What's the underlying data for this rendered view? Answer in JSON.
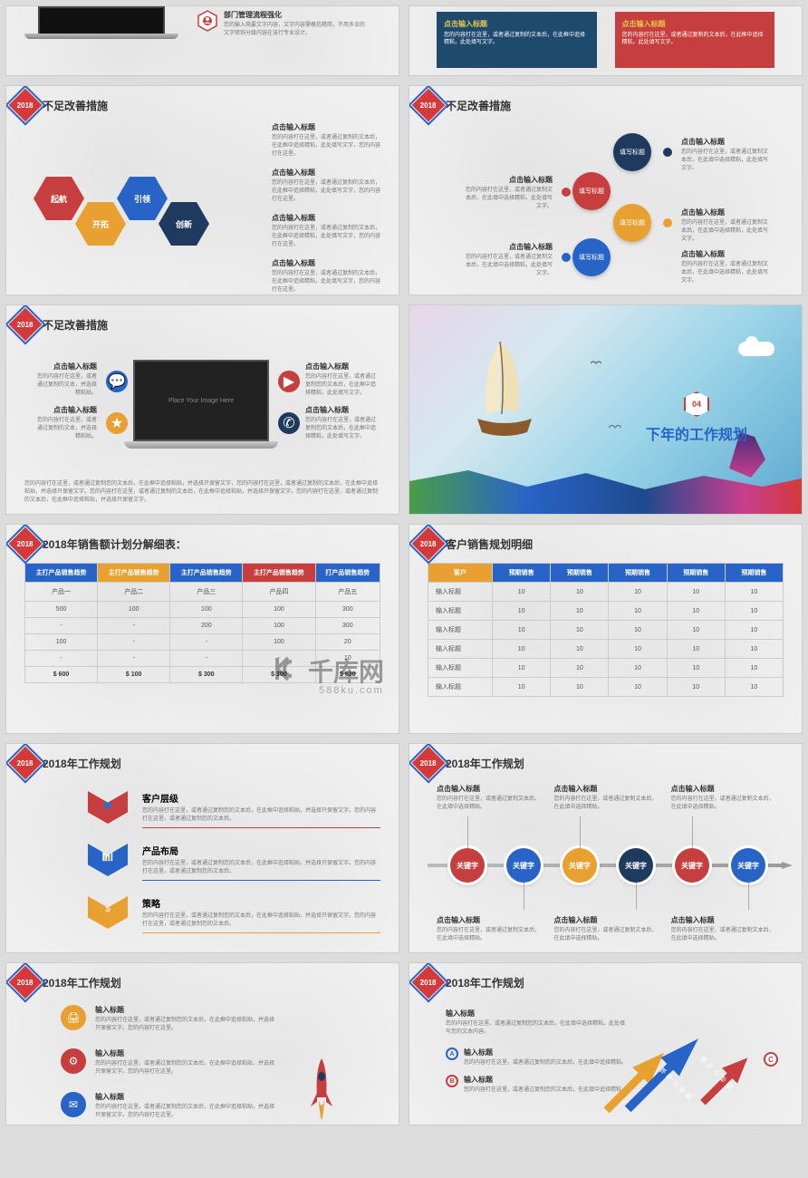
{
  "watermark": {
    "main": "千库网",
    "sub": "588ku.com"
  },
  "common": {
    "year": "2018",
    "enterTitle": "点击输入标题",
    "inputTitle": "输入标题",
    "keyword": "关键字",
    "fillTitle": "填写标题"
  },
  "s1": {
    "title": "部门管理流程强化",
    "desc": "您的输入简要文字内容，文字内容需概括精简，不用多余的文字修饰分级内容在该行专业设计。"
  },
  "s2": {
    "box1": "您的内容打在这里，或者通过复制的文本后，在此框中追择精粘，此处填写文字。",
    "box2": "您的内容打在这里，或者通过复制的文本后，在此框中追择精粘，此处填写文字。"
  },
  "s3": {
    "title": "不足改善措施",
    "hex": [
      "起航",
      "开拓",
      "引领",
      "创新"
    ],
    "txt": "您的内容打在这里，或者通过复制的文本后，在此框中追择精粘，此处填写文字，您的内容打在这里。",
    "colors": [
      "#c73e3e",
      "#e8a030",
      "#2864c7",
      "#1e3a5e"
    ]
  },
  "s4": {
    "title": "不足改善措施",
    "txt": "您的内容打在这里，或者通过复制文本后，在此填中选择精粘，此处填写文字。",
    "colors": [
      "#1e3a5e",
      "#c73e3e",
      "#e8a030",
      "#2864c7"
    ]
  },
  "s5": {
    "title": "不足改善措施",
    "placeholder": "Place Your Image Here",
    "left1": "您的内容打在这里，或者通过复制的文本，并选择精粘贴。",
    "left2": "您的内容打在这里，或者通过复制的文本，并选择精粘贴。",
    "right": "您的内容打在这里，或者通过复制您的文本后，在此框中追择精粘，此处填写文字。",
    "para": "您的内容打在这里，或者通过复制您的文本后，在此框中追择粘贴，并选择只保留文字，您的内容打在这里，或者通过复制的文本后，在此框中追择粘贴，并选择只保留文字。您的内容打在这里，或者通过复制的文本后，在此框中追择粘贴，并选择只保留文字。您的内容打在这里，或者通过复制的文本后，在此框中追择粘贴，并选择只保留文字。",
    "iconColors": [
      "#2864c7",
      "#e8a030",
      "#c73e3e",
      "#1e3a5e"
    ]
  },
  "s6": {
    "num": "04",
    "title": "下年的工作规划"
  },
  "s7": {
    "title": "2018年销售额计划分解细表：",
    "headers": [
      "主打产品销售趋势",
      "主打产品销售趋势",
      "主打产品销售趋势",
      "主打产品销售趋势",
      "打产品销售趋势"
    ],
    "rows": [
      [
        "产品一",
        "产品二",
        "产品三",
        "产品四",
        "产品五"
      ],
      [
        "500",
        "100",
        "100",
        "100",
        "300"
      ],
      [
        "-",
        "-",
        "200",
        "100",
        "300"
      ],
      [
        "100",
        "-",
        "-",
        "100",
        "20"
      ],
      [
        "-",
        "-",
        "-",
        "-",
        "10"
      ]
    ],
    "footer": [
      "$ 600",
      "$ 100",
      "$ 300",
      "$ 300",
      "$ 630"
    ]
  },
  "s8": {
    "title": "客户销售规划明细",
    "headers": [
      "客户",
      "预期销售",
      "预期销售",
      "预期销售",
      "预期销售",
      "预期销售"
    ],
    "rowLabel": "输入标题",
    "val": "10"
  },
  "s9": {
    "title": "2018年工作规划",
    "items": [
      {
        "label": "客户层级",
        "color": "#c73e3e",
        "icon": "👤"
      },
      {
        "label": "产品布局",
        "color": "#2864c7",
        "icon": "📊"
      },
      {
        "label": "策略",
        "color": "#e8a030",
        "icon": "$"
      }
    ],
    "txt": "您的内容打在这里，或者通过复制您的文本后，在此框中追择粘贴，并选择只保留文字。您的内容打在这里，或者通过复制您的文本后。"
  },
  "s10": {
    "title": "2018年工作规划",
    "txt": "您的内容打在这里，或者通过复制文本后，在此填中选择精贴。",
    "colors": [
      "#c73e3e",
      "#2864c7",
      "#e8a030",
      "#1e3a5e",
      "#c73e3e",
      "#2864c7"
    ]
  },
  "s11": {
    "title": "2018年工作规划",
    "txt": "您的内容打在这里，或者通过复制您的文本后，在此框中追择粘贴，并选择只保留文字。您的内容打在这里。",
    "colors": [
      "#e8a030",
      "#c73e3e",
      "#2864c7"
    ]
  },
  "s12": {
    "title": "2018年工作规划",
    "topTxt": "您的内容打在这里，或者通过复制您的文本后，在此填中选择精粘，此处填写您的文本内容。",
    "bulletTxt": "您的内容打在这里，或者通过复制您的文本后，在此填中追择精粘。",
    "letters": [
      "A",
      "B",
      "C"
    ],
    "arrLabel": "填写小标题",
    "arrColors": [
      "#e8a030",
      "#2864c7",
      "#c73e3e"
    ]
  }
}
